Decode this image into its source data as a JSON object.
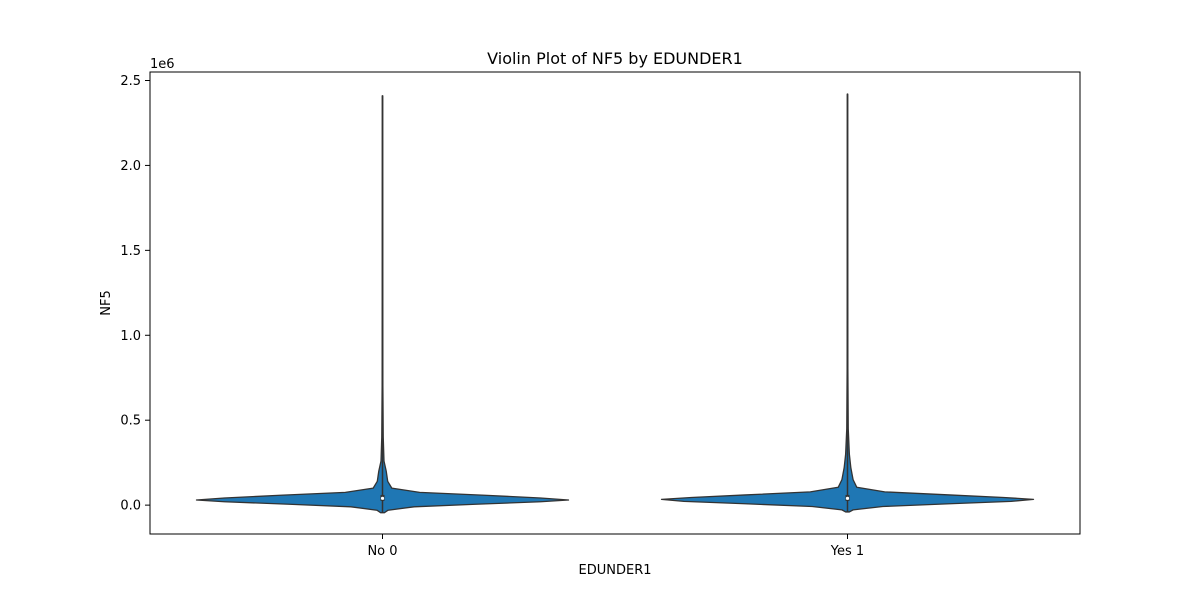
{
  "chart_data": {
    "type": "violin",
    "title": "Violin Plot of NF5 by EDUNDER1",
    "xlabel": "EDUNDER1",
    "ylabel": "NF5",
    "y_offset_label": "1e6",
    "categories": [
      "No 0",
      "Yes 1"
    ],
    "ylim": [
      -170000,
      2550000
    ],
    "y_ticks": [
      0,
      500000,
      1000000,
      1500000,
      2000000,
      2500000
    ],
    "y_tick_labels": [
      "0.0",
      "0.5",
      "1.0",
      "1.5",
      "2.0",
      "2.5"
    ],
    "fill_color": "#1f77b4",
    "edge_color": "#333333",
    "violins": [
      {
        "category": "No 0",
        "max": 2410000,
        "min": -45000,
        "median": 40000,
        "q1": 25000,
        "q3": 60000,
        "density": [
          [
            -45000,
            0.01
          ],
          [
            -30000,
            0.03
          ],
          [
            -10000,
            0.17
          ],
          [
            5000,
            0.5
          ],
          [
            20000,
            0.85
          ],
          [
            30000,
            1.0
          ],
          [
            42000,
            0.85
          ],
          [
            58000,
            0.55
          ],
          [
            75000,
            0.2
          ],
          [
            100000,
            0.05
          ],
          [
            140000,
            0.028
          ],
          [
            200000,
            0.02
          ],
          [
            260000,
            0.008
          ],
          [
            400000,
            0.004
          ],
          [
            700000,
            0.002
          ],
          [
            1200000,
            0.0015
          ],
          [
            2410000,
            0.001
          ]
        ]
      },
      {
        "category": "Yes 1",
        "max": 2420000,
        "min": -40000,
        "median": 40000,
        "q1": 25000,
        "q3": 60000,
        "density": [
          [
            -40000,
            0.01
          ],
          [
            -28000,
            0.03
          ],
          [
            -8000,
            0.19
          ],
          [
            8000,
            0.55
          ],
          [
            22000,
            0.88
          ],
          [
            34000,
            1.0
          ],
          [
            45000,
            0.84
          ],
          [
            60000,
            0.55
          ],
          [
            78000,
            0.2
          ],
          [
            105000,
            0.05
          ],
          [
            150000,
            0.03
          ],
          [
            220000,
            0.018
          ],
          [
            300000,
            0.01
          ],
          [
            450000,
            0.004
          ],
          [
            800000,
            0.002
          ],
          [
            1300000,
            0.0015
          ],
          [
            2420000,
            0.001
          ]
        ]
      }
    ]
  }
}
